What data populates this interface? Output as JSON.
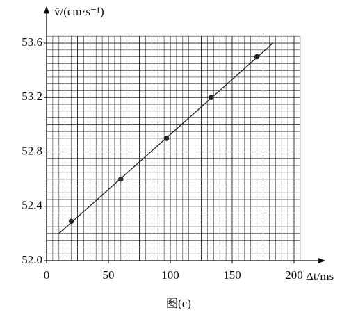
{
  "chart_data": {
    "type": "scatter",
    "ylabel": "v̄/(cm·s⁻¹)",
    "xlabel": "Δt/ms",
    "caption": "图(c)",
    "xlim": [
      0,
      205
    ],
    "ylim": [
      52.0,
      53.65
    ],
    "xticks": [
      0,
      50,
      100,
      150,
      200
    ],
    "yticks": [
      {
        "value": 52.0,
        "label": "52.0"
      },
      52.4,
      52.8,
      53.2,
      53.6
    ],
    "grid": {
      "x_step": 5,
      "y_step": 0.05
    },
    "series": [
      {
        "x": [
          20,
          60,
          97,
          133,
          170
        ],
        "values": [
          52.29,
          52.6,
          52.9,
          53.2,
          53.5
        ],
        "color": "#222222"
      }
    ],
    "fit_line": {
      "x": [
        10,
        183
      ],
      "values": [
        52.2,
        53.6
      ],
      "color": "#222222"
    }
  }
}
